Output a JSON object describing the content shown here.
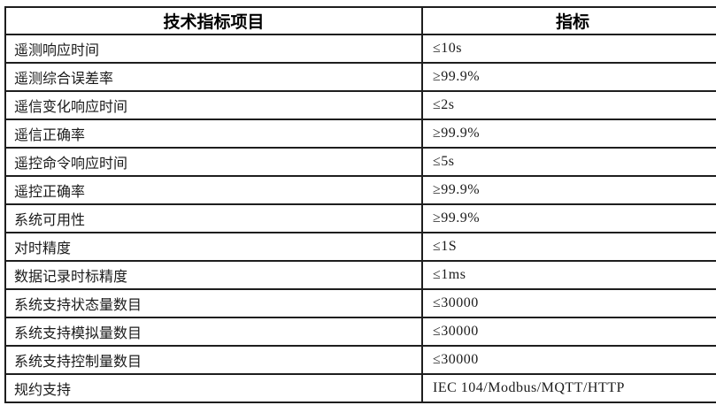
{
  "colors": {
    "background": "#ffffff",
    "border": "#1e1e1e",
    "text": "#1b1b1b"
  },
  "table": {
    "headers": [
      {
        "label": "技术指标项目"
      },
      {
        "label": "指标"
      }
    ],
    "rows": [
      {
        "item": "遥测响应时间",
        "value": "≤10s"
      },
      {
        "item": "遥测综合误差率",
        "value": "≥99.9%"
      },
      {
        "item": "遥信变化响应时间",
        "value": "≤2s"
      },
      {
        "item": "遥信正确率",
        "value": "≥99.9%"
      },
      {
        "item": "遥控命令响应时间",
        "value": "≤5s"
      },
      {
        "item": "遥控正确率",
        "value": "≥99.9%"
      },
      {
        "item": "系统可用性",
        "value": "≥99.9%"
      },
      {
        "item": "对时精度",
        "value": "≤1S"
      },
      {
        "item": "数据记录时标精度",
        "value": "≤1ms"
      },
      {
        "item": "系统支持状态量数目",
        "value": "≤30000"
      },
      {
        "item": "系统支持模拟量数目",
        "value": "≤30000"
      },
      {
        "item": "系统支持控制量数目",
        "value": "≤30000"
      },
      {
        "item": "规约支持",
        "value": "IEC 104/Modbus/MQTT/HTTP"
      }
    ]
  }
}
